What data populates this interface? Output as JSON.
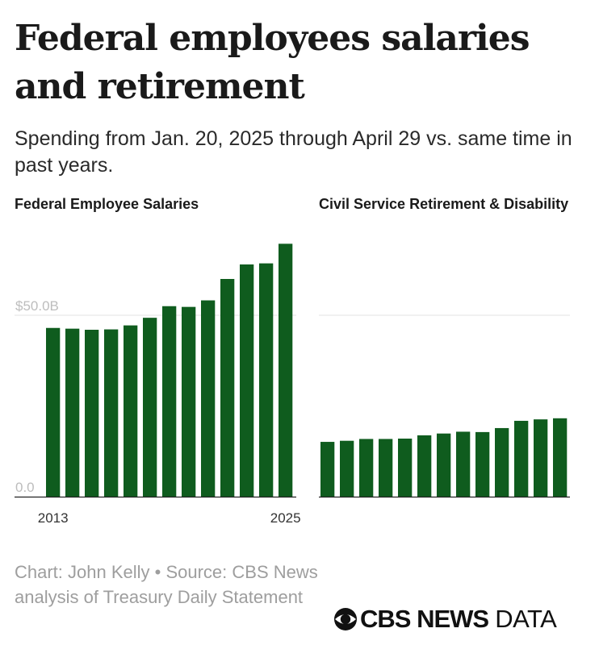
{
  "header": {
    "title": "Federal employees salaries and retirement",
    "subtitle": "Spending from Jan. 20, 2025 through April 29 vs. same time in past years."
  },
  "chart_data": [
    {
      "type": "bar",
      "title": "Federal Employee Salaries",
      "categories": [
        2013,
        2014,
        2015,
        2016,
        2017,
        2018,
        2019,
        2020,
        2021,
        2022,
        2023,
        2024,
        2025
      ],
      "values": [
        46.5,
        46.3,
        46.0,
        46.1,
        47.2,
        49.3,
        52.5,
        52.3,
        54.1,
        60.0,
        64.0,
        64.3,
        69.7
      ],
      "ylim": [
        0,
        70
      ],
      "y_ticks": [
        {
          "value": 0,
          "label": "0.0"
        },
        {
          "value": 50,
          "label": "$50.0B"
        }
      ],
      "x_tick_labels": [
        {
          "index": 0,
          "label": "2013"
        },
        {
          "index": 12,
          "label": "2025"
        }
      ],
      "bar_color": "#0f5c1e",
      "grid": true
    },
    {
      "type": "bar",
      "title": "Civil Service Retirement & Disability",
      "categories": [
        2013,
        2014,
        2015,
        2016,
        2017,
        2018,
        2019,
        2020,
        2021,
        2022,
        2023,
        2024,
        2025
      ],
      "values": [
        15.1,
        15.4,
        15.9,
        15.9,
        16.0,
        16.9,
        17.4,
        17.9,
        17.8,
        18.9,
        20.9,
        21.3,
        21.6
      ],
      "ylim": [
        0,
        70
      ],
      "y_ticks": [
        {
          "value": 0,
          "label": ""
        },
        {
          "value": 50,
          "label": ""
        }
      ],
      "x_tick_labels": [],
      "bar_color": "#0f5c1e",
      "grid": true
    }
  ],
  "footer": {
    "source": "Chart: John Kelly • Source: CBS News analysis of Treasury Daily Statement",
    "logo_bold": "CBS NEWS",
    "logo_light": "DATA"
  }
}
